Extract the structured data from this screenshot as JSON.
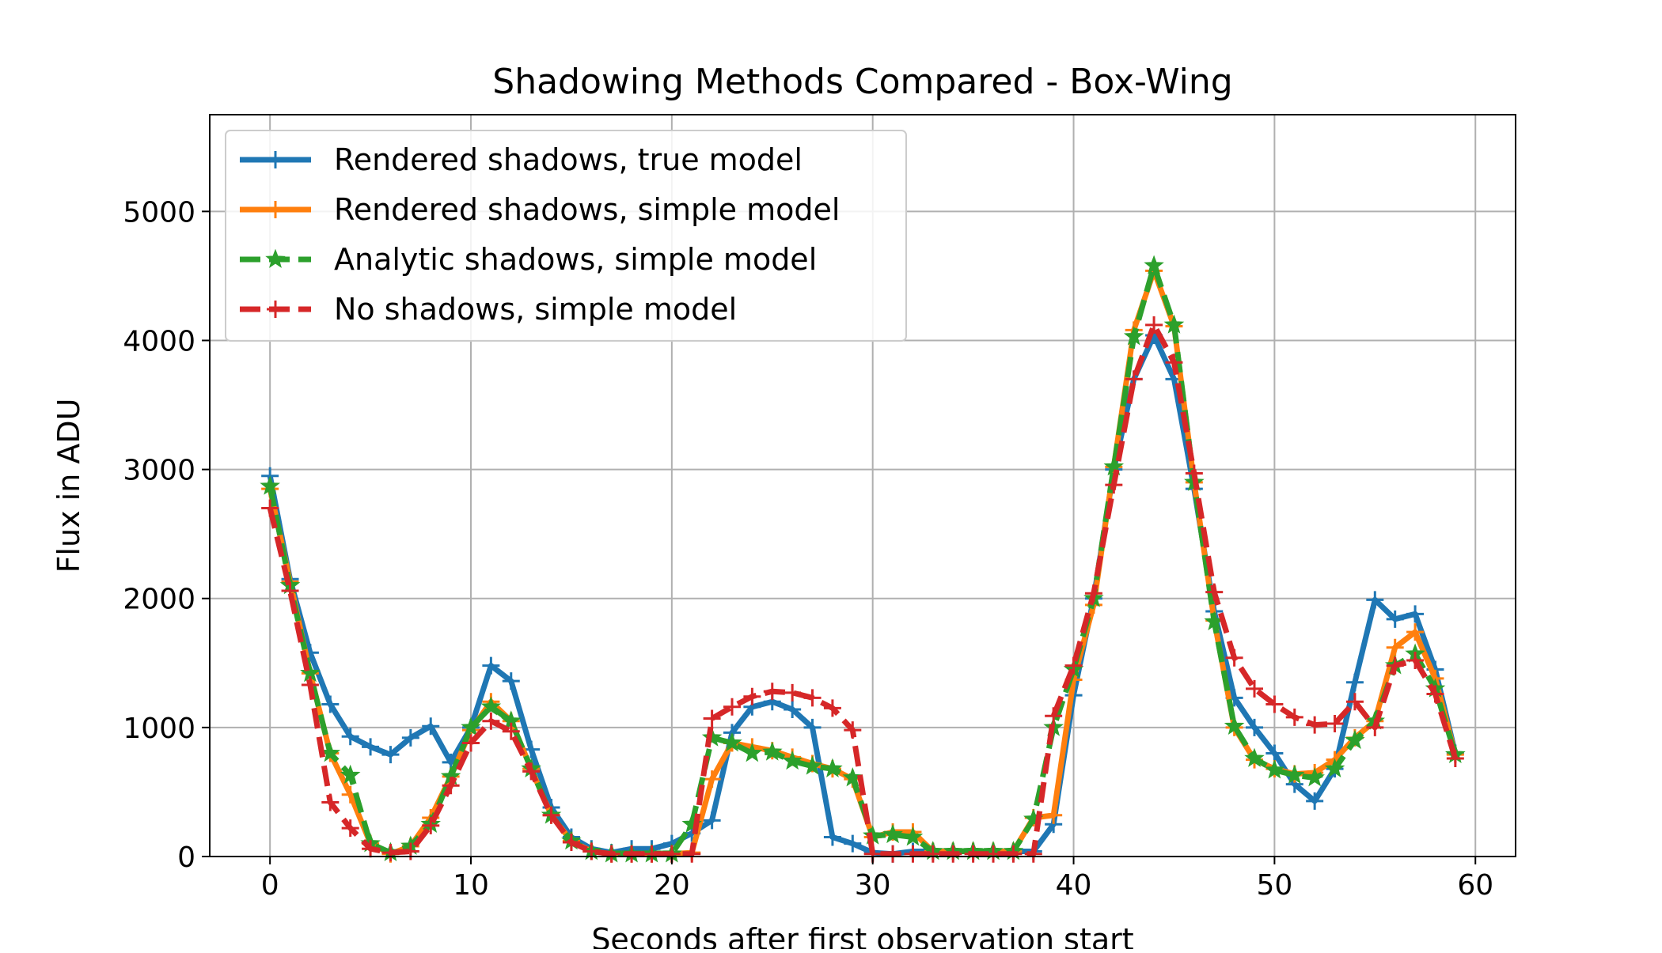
{
  "chart_data": {
    "type": "line",
    "title": "Shadowing Methods Compared - Box-Wing",
    "xlabel": "Seconds after first observation start",
    "ylabel": "Flux in ADU",
    "xlim": [
      -3,
      62
    ],
    "ylim": [
      0,
      5750
    ],
    "xticks": [
      0,
      10,
      20,
      30,
      40,
      50,
      60
    ],
    "yticks": [
      0,
      1000,
      2000,
      3000,
      4000,
      5000
    ],
    "xtick_labels": [
      "0",
      "10",
      "20",
      "30",
      "40",
      "50",
      "60"
    ],
    "ytick_labels": [
      "0",
      "1000",
      "2000",
      "3000",
      "4000",
      "5000"
    ],
    "grid": true,
    "legend_position": "upper-left",
    "x": [
      0,
      1,
      2,
      3,
      4,
      5,
      6,
      7,
      8,
      9,
      10,
      11,
      12,
      13,
      14,
      15,
      16,
      17,
      18,
      19,
      20,
      21,
      22,
      23,
      24,
      25,
      26,
      27,
      28,
      29,
      30,
      31,
      32,
      33,
      34,
      35,
      36,
      37,
      38,
      39,
      40,
      41,
      42,
      43,
      44,
      45,
      46,
      47,
      48,
      49,
      50,
      51,
      52,
      53,
      54,
      55,
      56,
      57,
      58,
      59
    ],
    "series": [
      {
        "name": "Rendered shadows, true model",
        "color": "#1f77b4",
        "line_style": "solid",
        "marker": "plus",
        "values": [
          2950,
          2150,
          1580,
          1180,
          930,
          850,
          790,
          920,
          1010,
          730,
          1000,
          1480,
          1360,
          830,
          380,
          150,
          60,
          30,
          60,
          60,
          100,
          180,
          280,
          960,
          1160,
          1200,
          1140,
          1000,
          150,
          100,
          30,
          20,
          40,
          40,
          40,
          40,
          40,
          40,
          40,
          250,
          1250,
          2000,
          3000,
          3700,
          4040,
          3700,
          2850,
          1900,
          1230,
          1000,
          800,
          560,
          430,
          680,
          1350,
          1990,
          1840,
          1880,
          1450,
          800
        ]
      },
      {
        "name": "Rendered shadows, simple model",
        "color": "#ff7f0e",
        "line_style": "solid",
        "marker": "plus",
        "values": [
          2850,
          2130,
          1420,
          800,
          480,
          100,
          20,
          80,
          300,
          620,
          980,
          1200,
          1050,
          680,
          320,
          120,
          40,
          20,
          20,
          20,
          20,
          30,
          600,
          880,
          850,
          820,
          770,
          720,
          680,
          600,
          150,
          190,
          190,
          40,
          40,
          40,
          40,
          40,
          300,
          320,
          1370,
          1950,
          3020,
          4080,
          4540,
          4110,
          2900,
          1830,
          1000,
          750,
          680,
          640,
          650,
          750,
          920,
          1050,
          1620,
          1740,
          1380,
          790
        ]
      },
      {
        "name": "Analytic shadows, simple model",
        "color": "#2ca02c",
        "line_style": "dashed",
        "marker": "star",
        "values": [
          2870,
          2100,
          1420,
          800,
          630,
          100,
          30,
          80,
          250,
          620,
          1000,
          1160,
          1050,
          680,
          320,
          120,
          40,
          20,
          20,
          20,
          20,
          250,
          920,
          880,
          800,
          810,
          740,
          700,
          680,
          610,
          160,
          170,
          150,
          40,
          40,
          40,
          40,
          40,
          290,
          1000,
          1450,
          2000,
          3020,
          4030,
          4580,
          4120,
          2900,
          1820,
          1010,
          760,
          670,
          630,
          610,
          680,
          900,
          1050,
          1480,
          1570,
          1300,
          790
        ]
      },
      {
        "name": "No shadows, simple model",
        "color": "#d62728",
        "line_style": "dashed",
        "marker": "plus",
        "values": [
          2700,
          2060,
          1330,
          420,
          220,
          60,
          30,
          40,
          240,
          550,
          880,
          1050,
          970,
          660,
          320,
          110,
          40,
          20,
          20,
          20,
          20,
          20,
          1070,
          1160,
          1240,
          1280,
          1270,
          1230,
          1150,
          980,
          20,
          20,
          20,
          20,
          20,
          20,
          20,
          20,
          20,
          1090,
          1480,
          2040,
          2880,
          3700,
          4120,
          3830,
          2970,
          2050,
          1540,
          1300,
          1180,
          1080,
          1020,
          1030,
          1200,
          1000,
          1480,
          1520,
          1260,
          760
        ]
      }
    ]
  }
}
